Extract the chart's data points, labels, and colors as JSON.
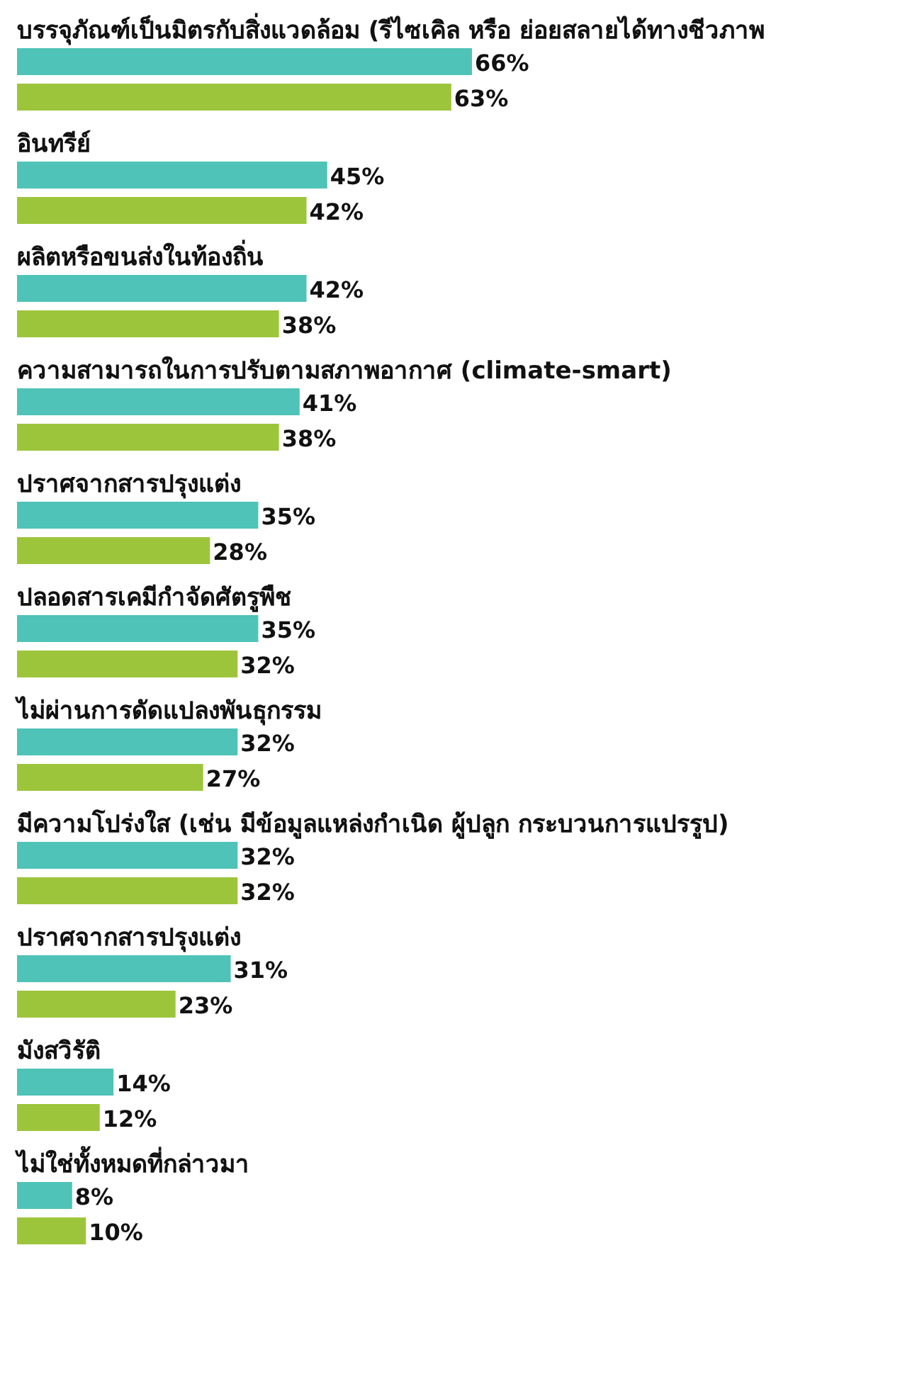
{
  "chart_data": {
    "type": "bar",
    "orientation": "horizontal",
    "categories": [
      "บรรจุภัณฑ์เป็นมิตรกับสิ่งแวดล้อม (รีไซเคิล หรือ ย่อยสลายได้ทางชีวภาพ",
      "อินทรีย์",
      "ผลิตหรือขนส่งในท้องถิ่น",
      "ความสามารถในการปรับตามสภาพอากาศ (climate-smart)",
      "ปราศจากสารปรุงแต่ง",
      "ปลอดสารเคมีกำจัดศัตรูพืช",
      "ไม่ผ่านการดัดแปลงพันธุกรรม",
      "มีความโปร่งใส (เช่น มีข้อมูลแหล่งกำเนิด ผู้ปลูก กระบวนการแปรรูป)",
      "ปราศจากสารปรุงแต่ง",
      "มังสวิรัติ",
      "ไม่ใช่ทั้งหมดที่กล่าวมา"
    ],
    "series": [
      {
        "color": "#4fc3b7",
        "values": [
          66,
          45,
          42,
          41,
          35,
          35,
          32,
          32,
          31,
          14,
          8
        ],
        "value_labels": [
          "66%",
          "45%",
          "42%",
          "41%",
          "35%",
          "35%",
          "32%",
          "32%",
          "31%",
          "14%",
          "8%"
        ]
      },
      {
        "color": "#9dc53b",
        "values": [
          63,
          42,
          38,
          38,
          28,
          32,
          27,
          32,
          23,
          12,
          10
        ],
        "value_labels": [
          "63%",
          "42%",
          "38%",
          "38%",
          "28%",
          "32%",
          "27%",
          "32%",
          "23%",
          "12%",
          "10%"
        ]
      }
    ]
  }
}
